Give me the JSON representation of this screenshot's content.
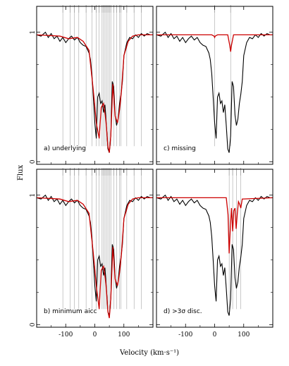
{
  "chart_data": {
    "type": "line",
    "figure_ylabel": "Flux",
    "figure_xlabel": "Velocity (km·s⁻¹)",
    "x_ticks": [
      -100,
      0,
      100
    ],
    "xlim": [
      -200,
      200
    ],
    "ylim": [
      -0.02,
      1.2
    ],
    "y_ticks": [
      0,
      1
    ],
    "panels": [
      {
        "id": "a",
        "label": "a) underlying",
        "component_lines": [
          -110,
          -85,
          -70,
          -55,
          -30,
          -10,
          5,
          15,
          25,
          30,
          35,
          40,
          45,
          50,
          55,
          65,
          75,
          85,
          90,
          110,
          135,
          160
        ],
        "model_profile": {
          "x": [
            -200,
            -120,
            -90,
            -60,
            -40,
            -20,
            -5,
            5,
            15,
            22,
            30,
            38,
            45,
            50,
            55,
            62,
            70,
            78,
            85,
            92,
            100,
            115,
            130,
            150,
            200
          ],
          "y": [
            0.98,
            0.97,
            0.95,
            0.96,
            0.93,
            0.86,
            0.55,
            0.3,
            0.18,
            0.42,
            0.45,
            0.32,
            0.12,
            0.07,
            0.2,
            0.6,
            0.35,
            0.3,
            0.4,
            0.55,
            0.82,
            0.93,
            0.97,
            0.98,
            0.98
          ]
        }
      },
      {
        "id": "c",
        "label": "c) missing",
        "component_lines": [
          0,
          55
        ],
        "model_profile": {
          "x": [
            -200,
            -10,
            -2,
            0,
            2,
            10,
            45,
            52,
            55,
            58,
            65,
            200
          ],
          "y": [
            0.98,
            0.98,
            0.97,
            0.96,
            0.97,
            0.98,
            0.98,
            0.9,
            0.85,
            0.9,
            0.98,
            0.98
          ]
        }
      },
      {
        "id": "b",
        "label": "b) minimum aicc",
        "component_lines": [
          -110,
          -85,
          -70,
          -55,
          -30,
          -10,
          5,
          15,
          25,
          30,
          35,
          40,
          45,
          50,
          55,
          65,
          75,
          85,
          90,
          110,
          135,
          160
        ],
        "model_profile": {
          "x": [
            -200,
            -120,
            -90,
            -60,
            -40,
            -20,
            -5,
            5,
            15,
            22,
            30,
            38,
            45,
            50,
            55,
            62,
            70,
            78,
            85,
            92,
            100,
            115,
            130,
            150,
            200
          ],
          "y": [
            0.98,
            0.97,
            0.95,
            0.96,
            0.93,
            0.86,
            0.55,
            0.3,
            0.12,
            0.42,
            0.45,
            0.32,
            0.1,
            0.05,
            0.2,
            0.6,
            0.35,
            0.3,
            0.4,
            0.55,
            0.82,
            0.93,
            0.97,
            0.98,
            0.98
          ]
        }
      },
      {
        "id": "d",
        "label": "d) >3σ disc.",
        "component_lines": [
          50,
          62,
          75,
          90
        ],
        "model_profile": {
          "x": [
            -200,
            40,
            46,
            50,
            54,
            58,
            62,
            66,
            70,
            74,
            78,
            82,
            86,
            90,
            95,
            200
          ],
          "y": [
            0.98,
            0.98,
            0.85,
            0.55,
            0.75,
            0.9,
            0.72,
            0.88,
            0.9,
            0.74,
            0.86,
            0.95,
            0.93,
            0.9,
            0.97,
            0.98
          ]
        }
      }
    ],
    "data_profile": {
      "x": [
        -200,
        -185,
        -170,
        -160,
        -150,
        -140,
        -130,
        -120,
        -110,
        -100,
        -90,
        -80,
        -70,
        -60,
        -50,
        -40,
        -30,
        -20,
        -15,
        -10,
        -5,
        0,
        5,
        10,
        15,
        20,
        25,
        30,
        35,
        40,
        45,
        50,
        55,
        60,
        65,
        70,
        75,
        80,
        85,
        90,
        95,
        100,
        110,
        120,
        130,
        140,
        150,
        160,
        170,
        180,
        190
      ],
      "y": [
        0.98,
        0.97,
        1.0,
        0.96,
        0.99,
        0.95,
        0.97,
        0.93,
        0.96,
        0.92,
        0.95,
        0.97,
        0.94,
        0.96,
        0.92,
        0.9,
        0.89,
        0.84,
        0.79,
        0.68,
        0.5,
        0.3,
        0.18,
        0.5,
        0.53,
        0.45,
        0.47,
        0.38,
        0.44,
        0.28,
        0.1,
        0.07,
        0.2,
        0.62,
        0.58,
        0.36,
        0.28,
        0.33,
        0.45,
        0.52,
        0.62,
        0.82,
        0.92,
        0.96,
        0.95,
        0.98,
        0.96,
        0.99,
        0.97,
        0.99,
        0.98
      ]
    },
    "colors": {
      "data": "#000000",
      "model": "#cc0000",
      "components": "#888888",
      "frame": "#000000"
    }
  }
}
